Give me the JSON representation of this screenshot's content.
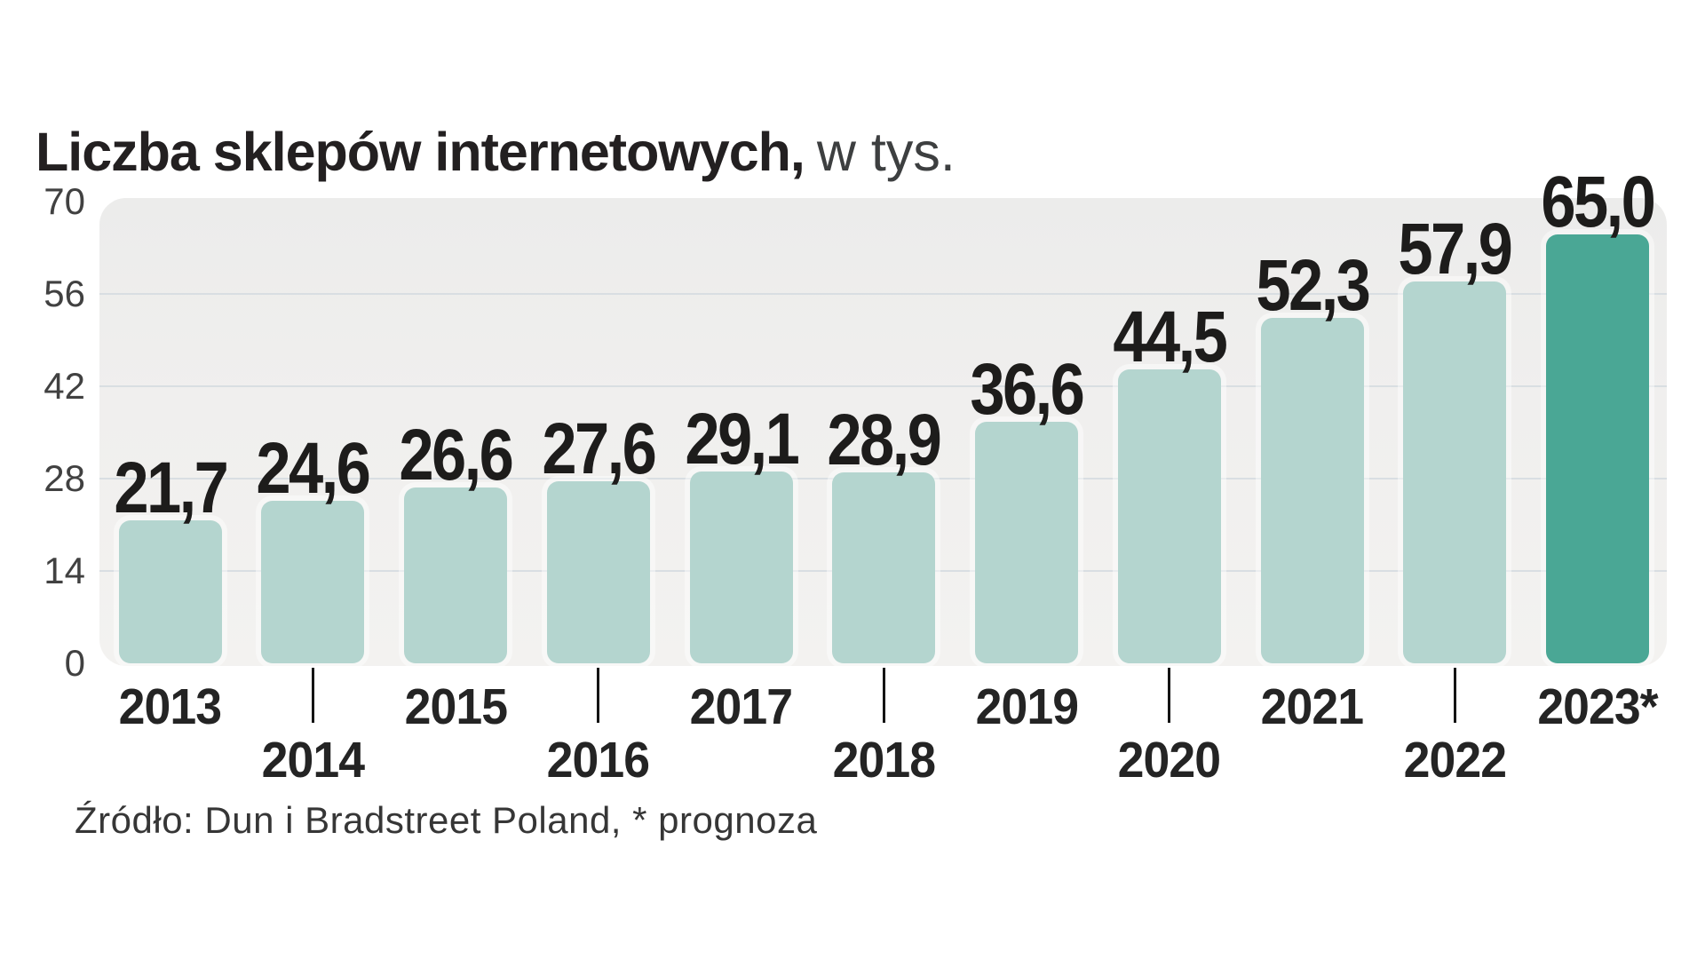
{
  "title": {
    "bold": "Liczba sklepów internetowych,",
    "suffix": "w tys."
  },
  "source": "Źródło: Dun i Bradstreet Poland, * prognoza",
  "colors": {
    "bar": "#b4d5cf",
    "bar_highlight": "#4aa795",
    "plot_background": "#f0efee",
    "gridline": "#d9dee2",
    "text": "#232021"
  },
  "chart_data": {
    "type": "bar",
    "title": "Liczba sklepów internetowych, w tys.",
    "xlabel": "",
    "ylabel": "w tys.",
    "categories": [
      "2013",
      "2014",
      "2015",
      "2016",
      "2017",
      "2018",
      "2019",
      "2020",
      "2021",
      "2022",
      "2023*"
    ],
    "values": [
      21.7,
      24.6,
      26.6,
      27.6,
      29.1,
      28.9,
      36.6,
      44.5,
      52.3,
      57.9,
      65.0
    ],
    "value_labels": [
      "21,7",
      "24,6",
      "26,6",
      "27,6",
      "29,1",
      "28,9",
      "36,6",
      "44,5",
      "52,3",
      "57,9",
      "65,0"
    ],
    "ylim": [
      0,
      70
    ],
    "yticks": [
      0,
      14,
      28,
      42,
      56,
      70
    ],
    "gridlines": [
      14,
      28,
      42,
      56
    ],
    "grid": "horizontal",
    "legend_position": "none",
    "highlight_index": 10,
    "annotation": "* prognoza"
  }
}
